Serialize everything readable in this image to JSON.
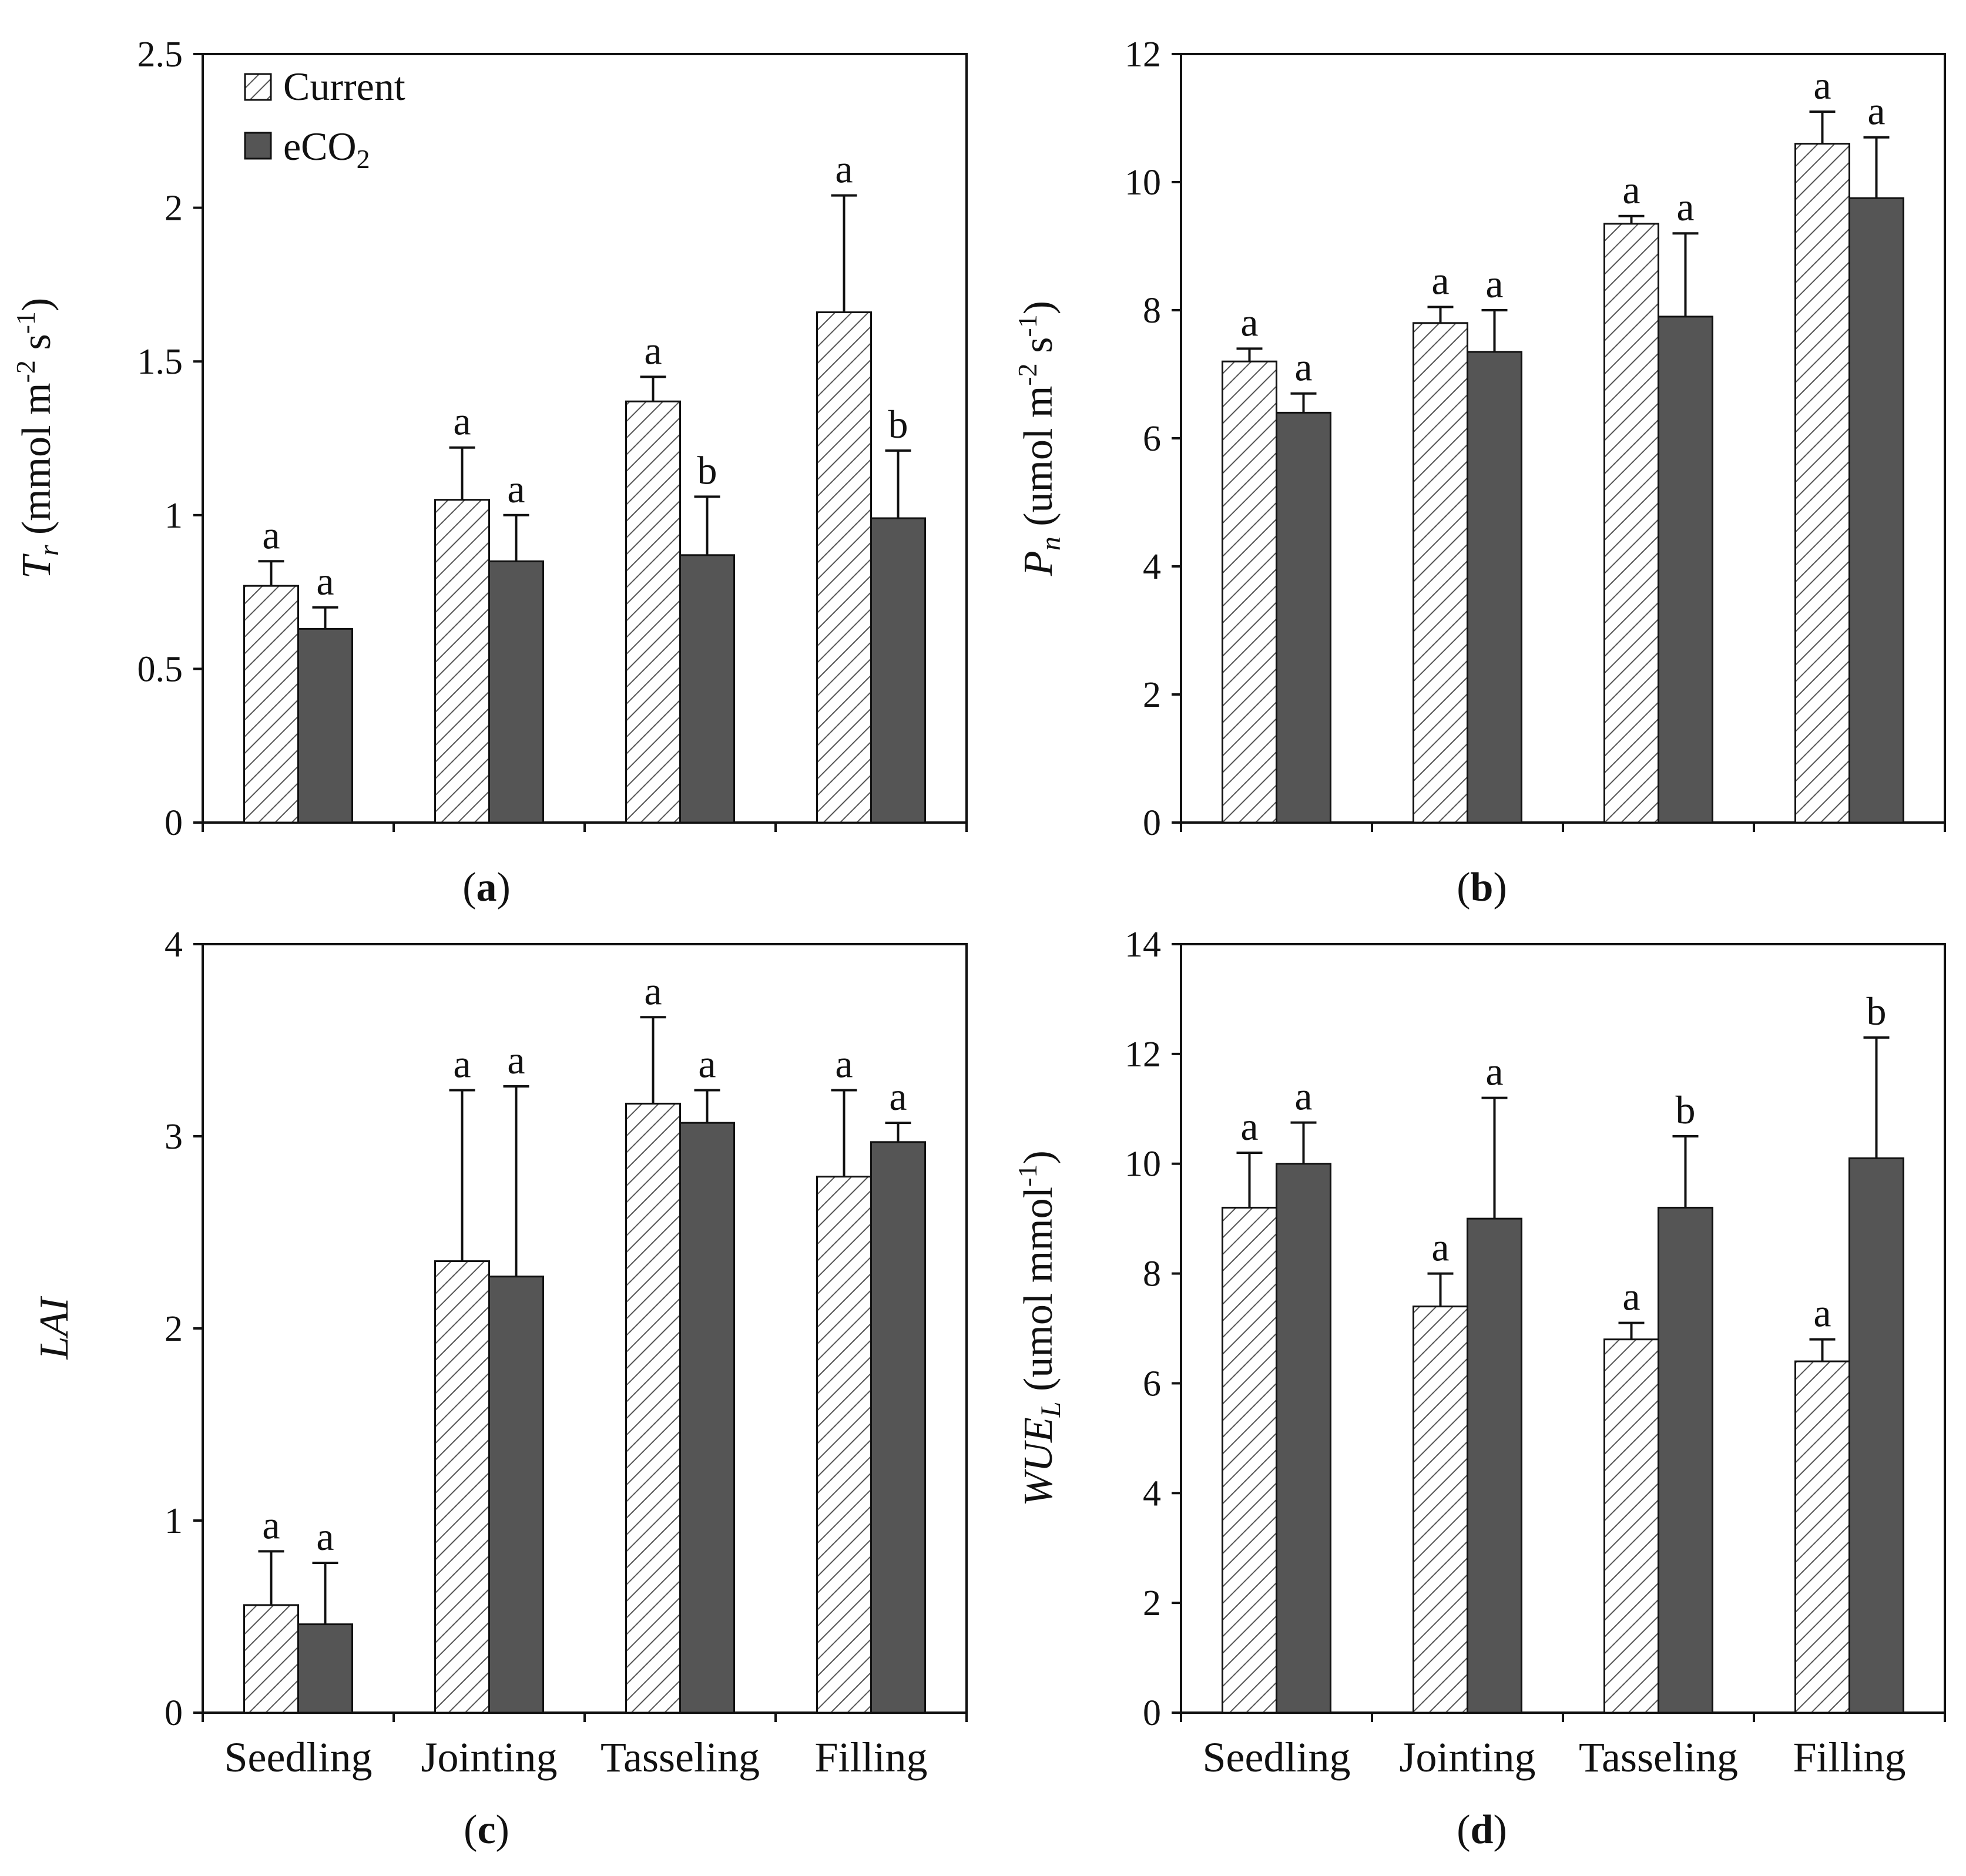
{
  "colors": {
    "current_hatch": "#555555",
    "eco2_fill": "#555555",
    "axis": "#111111"
  },
  "legend": {
    "current_label": "Current",
    "eco2_label": "eCO",
    "eco2_subscript": "2"
  },
  "chart_data": [
    {
      "type": "bar",
      "panel_label": "a",
      "ylabel": {
        "symbol": "T",
        "subscript": "r",
        "units": " (mmol m",
        "exp1": "-2",
        "mid": " s",
        "exp2": "-1",
        "close": ")"
      },
      "ylim": [
        0,
        2.5
      ],
      "yticks": [
        "0",
        "0.5",
        "1",
        "1.5",
        "2",
        "2.5"
      ],
      "categories": [
        "Seedling",
        "Jointing",
        "Tasseling",
        "Filling"
      ],
      "show_categories": false,
      "series": [
        {
          "name": "Current",
          "values": [
            0.77,
            1.05,
            1.37,
            1.66
          ],
          "errors": [
            0.08,
            0.17,
            0.08,
            0.38
          ],
          "letters": [
            "a",
            "a",
            "a",
            "a"
          ]
        },
        {
          "name": "eCO2",
          "values": [
            0.63,
            0.85,
            0.87,
            0.99
          ],
          "errors": [
            0.07,
            0.15,
            0.19,
            0.22
          ],
          "letters": [
            "a",
            "a",
            "b",
            "b"
          ]
        }
      ]
    },
    {
      "type": "bar",
      "panel_label": "b",
      "ylabel": {
        "symbol": "P",
        "subscript": "n",
        "units": " (umol m",
        "exp1": "-2",
        "mid": " s",
        "exp2": "-1",
        "close": ")"
      },
      "ylim": [
        0,
        12
      ],
      "yticks": [
        "0",
        "2",
        "4",
        "6",
        "8",
        "10",
        "12"
      ],
      "categories": [
        "Seedling",
        "Jointing",
        "Tasseling",
        "Filling"
      ],
      "show_categories": false,
      "series": [
        {
          "name": "Current",
          "values": [
            7.2,
            7.8,
            9.35,
            10.6
          ],
          "errors": [
            0.2,
            0.25,
            0.12,
            0.5
          ],
          "letters": [
            "a",
            "a",
            "a",
            "a"
          ]
        },
        {
          "name": "eCO2",
          "values": [
            6.4,
            7.35,
            7.9,
            9.75
          ],
          "errors": [
            0.3,
            0.65,
            1.3,
            0.95
          ],
          "letters": [
            "a",
            "a",
            "a",
            "a"
          ]
        }
      ]
    },
    {
      "type": "bar",
      "panel_label": "c",
      "ylabel": {
        "symbol": "LAI",
        "subscript": "",
        "units": "",
        "exp1": "",
        "mid": "",
        "exp2": "",
        "close": ""
      },
      "ylim": [
        0,
        4
      ],
      "yticks": [
        "0",
        "1",
        "2",
        "3",
        "4"
      ],
      "categories": [
        "Seedling",
        "Jointing",
        "Tasseling",
        "Filling"
      ],
      "show_categories": true,
      "series": [
        {
          "name": "Current",
          "values": [
            0.56,
            2.35,
            3.17,
            2.79
          ],
          "errors": [
            0.28,
            0.89,
            0.45,
            0.45
          ],
          "letters": [
            "a",
            "a",
            "a",
            "a"
          ]
        },
        {
          "name": "eCO2",
          "values": [
            0.46,
            2.27,
            3.07,
            2.97
          ],
          "errors": [
            0.32,
            0.99,
            0.17,
            0.1
          ],
          "letters": [
            "a",
            "a",
            "a",
            "a"
          ]
        }
      ]
    },
    {
      "type": "bar",
      "panel_label": "d",
      "ylabel": {
        "symbol": "WUE",
        "subscript": "L",
        "units": " (umol mmol",
        "exp1": "-1",
        "mid": "",
        "exp2": "",
        "close": ")"
      },
      "ylim": [
        0,
        14
      ],
      "yticks": [
        "0",
        "2",
        "4",
        "6",
        "8",
        "10",
        "12",
        "14"
      ],
      "categories": [
        "Seedling",
        "Jointing",
        "Tasseling",
        "Filling"
      ],
      "show_categories": true,
      "series": [
        {
          "name": "Current",
          "values": [
            9.2,
            7.4,
            6.8,
            6.4
          ],
          "errors": [
            1.0,
            0.6,
            0.3,
            0.4
          ],
          "letters": [
            "a",
            "a",
            "a",
            "a"
          ]
        },
        {
          "name": "eCO2",
          "values": [
            10.0,
            9.0,
            9.2,
            10.1
          ],
          "errors": [
            0.75,
            2.2,
            1.3,
            2.2
          ],
          "letters": [
            "a",
            "a",
            "b",
            "b"
          ]
        }
      ]
    }
  ]
}
